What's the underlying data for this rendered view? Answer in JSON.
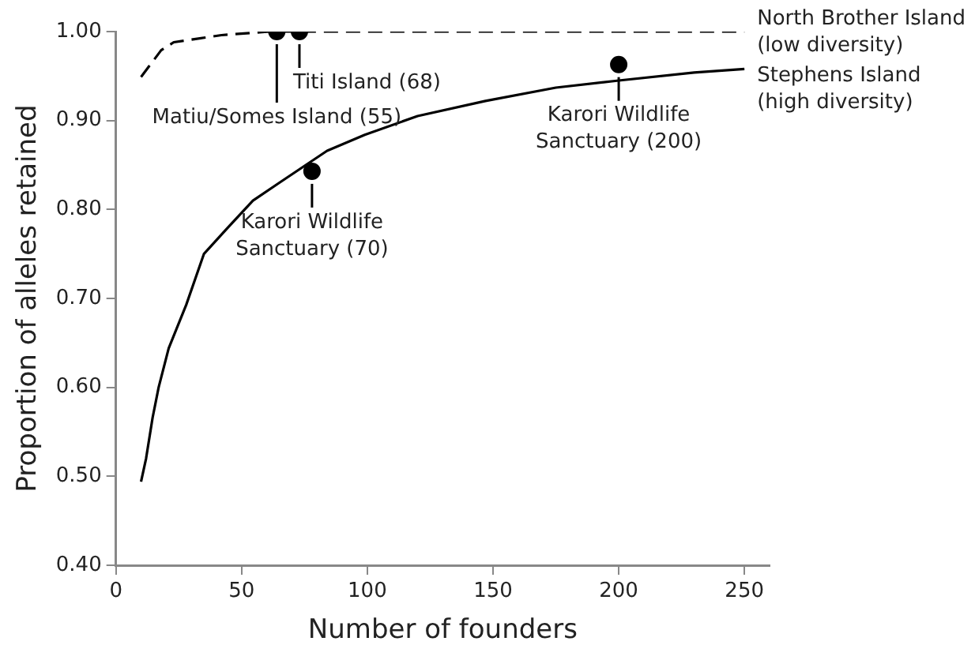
{
  "chart_data": {
    "type": "line",
    "xlabel": "Number of founders",
    "ylabel": "Proportion of alleles retained",
    "xlim": [
      0,
      260
    ],
    "xticks": [
      0,
      50,
      100,
      150,
      200,
      250
    ],
    "ylim": [
      0.4,
      1.0
    ],
    "yticks": [
      {
        "value": 0.4,
        "label": "0.40"
      },
      {
        "value": 0.5,
        "label": "0.50"
      },
      {
        "value": 0.6,
        "label": "0.60"
      },
      {
        "value": 0.7,
        "label": "0.70"
      },
      {
        "value": 0.8,
        "label": "0.80"
      },
      {
        "value": 0.9,
        "label": "0.90"
      },
      {
        "value": 1.0,
        "label": "1.00"
      }
    ],
    "grid": false,
    "legend": false,
    "series": [
      {
        "name": "North Brother Island (low diversity)",
        "color": "#000000",
        "line_style": "dashed",
        "marker": "none",
        "x": [
          10,
          18,
          23,
          42,
          61,
          100,
          150,
          200,
          250
        ],
        "values": [
          0.949,
          0.979,
          0.988,
          0.996,
          1.0,
          1.0,
          1.0,
          1.0,
          1.0
        ]
      },
      {
        "name": "Stephens Island (high diversity)",
        "color": "#000000",
        "line_style": "solid",
        "marker": "none",
        "x": [
          10,
          12,
          14.6,
          17,
          21,
          28,
          35,
          44,
          54.5,
          65,
          84,
          99,
          120,
          147,
          175,
          200,
          230,
          250
        ],
        "values": [
          0.494,
          0.52,
          0.566,
          0.6,
          0.644,
          0.693,
          0.75,
          0.778,
          0.81,
          0.83,
          0.866,
          0.884,
          0.905,
          0.922,
          0.937,
          0.945,
          0.954,
          0.958
        ]
      },
      {
        "type": "scatter",
        "color": "#000000",
        "marker": "circle",
        "x": [
          64,
          73,
          78,
          200
        ],
        "values": [
          1.0,
          1.0,
          0.843,
          0.963
        ]
      }
    ],
    "annotations": [
      {
        "text": "Matiu/Somes Island (55)",
        "x": 64,
        "y": 1.0
      },
      {
        "text": "Titi Island (68)",
        "x": 73,
        "y": 1.0
      },
      {
        "text": "Karori Wildlife Sanctuary (70)",
        "x": 78,
        "y": 0.843
      },
      {
        "text": "Karori Wildlife Sanctuary (200)",
        "x": 200,
        "y": 0.963
      }
    ]
  }
}
